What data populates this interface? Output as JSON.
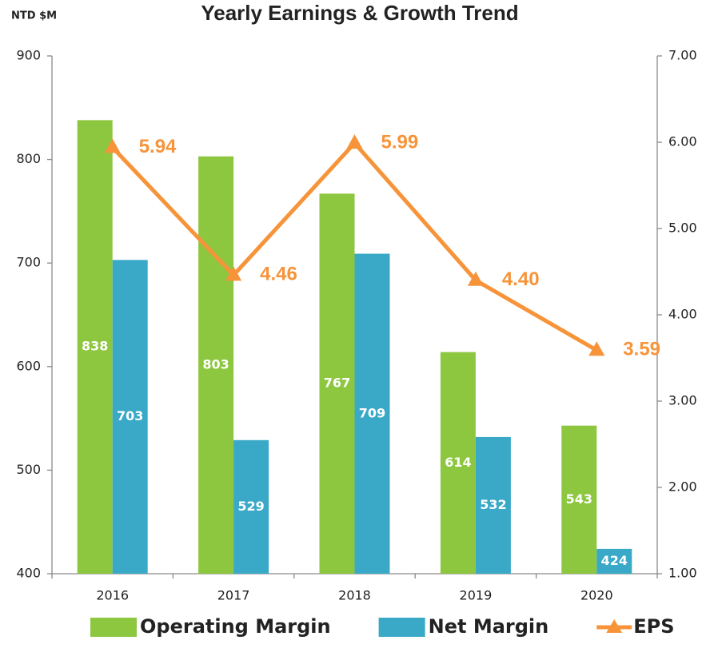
{
  "chart_data": {
    "type": "bar",
    "title": "Yearly Earnings & Growth Trend",
    "y_label": "NTD $M",
    "categories": [
      "2016",
      "2017",
      "2018",
      "2019",
      "2020"
    ],
    "series": [
      {
        "name": "Operating Margin",
        "type": "bar",
        "color": "#8dc63f",
        "values": [
          838,
          803,
          767,
          614,
          543
        ]
      },
      {
        "name": "Net Margin",
        "type": "bar",
        "color": "#3aa9c8",
        "values": [
          703,
          529,
          709,
          532,
          424
        ]
      },
      {
        "name": "EPS",
        "type": "line",
        "axis": "y2",
        "color": "#f7943a",
        "values": [
          5.94,
          4.46,
          5.99,
          4.4,
          3.59
        ],
        "value_labels": [
          "5.94",
          "4.46",
          "5.99",
          "4.40",
          "3.59"
        ]
      }
    ],
    "ylim": [
      400,
      900
    ],
    "yticks": [
      400,
      500,
      600,
      700,
      800,
      900
    ],
    "y2lim": [
      1,
      7
    ],
    "y2ticks": [
      {
        "value": 1,
        "label": "1.00"
      },
      {
        "value": 2,
        "label": "2.00"
      },
      {
        "value": 3,
        "label": "3.00"
      },
      {
        "value": 4,
        "label": "4.00"
      },
      {
        "value": 5,
        "label": "5.00"
      },
      {
        "value": 6,
        "label": "6.00"
      },
      {
        "value": 7,
        "label": "7.00"
      }
    ],
    "grid": false,
    "legend": "bottom"
  }
}
